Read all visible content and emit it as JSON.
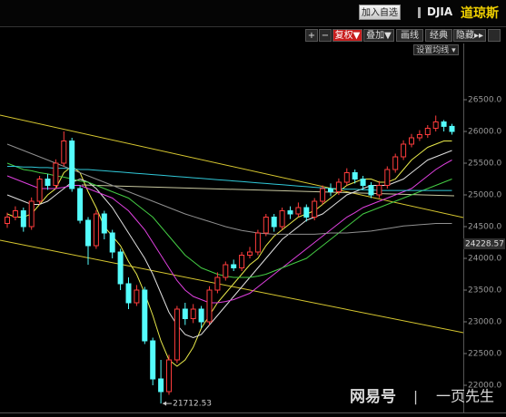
{
  "header": {
    "button": "加入自选",
    "symbol": "DJIA",
    "name": "道琼斯"
  },
  "toolbar": [
    "+",
    "−",
    "复权▼",
    "叠加▼",
    "画线",
    "经典",
    "隐藏▸▸"
  ],
  "ma_setting": "设置均线 ▾",
  "watermark": {
    "brand": "网易号",
    "author": "一页先生"
  },
  "chart_data": {
    "type": "candlestick",
    "up_color": "#ff3c3c",
    "down_color": "#54fcfc",
    "open": [
      24550,
      24650,
      24750,
      24500,
      24900,
      25250,
      25150,
      25500,
      25850,
      25100,
      24600,
      24200,
      24700,
      24400,
      24100,
      23600,
      23300,
      23500,
      22700,
      22100,
      21900,
      22400,
      23200,
      23050,
      23200,
      23000,
      23500,
      23700,
      23900,
      23850,
      24050,
      24100,
      24400,
      24650,
      24500,
      24750,
      24700,
      24800,
      24650,
      24900,
      25100,
      25050,
      25200,
      25350,
      25250,
      25150,
      25000,
      25150,
      25400,
      25600,
      25800,
      25900,
      25950,
      26050,
      26150,
      26080
    ],
    "close": [
      24650,
      24750,
      24500,
      24900,
      25250,
      25150,
      25500,
      25850,
      25100,
      24600,
      24200,
      24700,
      24400,
      24100,
      23600,
      23300,
      23500,
      22700,
      22100,
      21900,
      22400,
      23200,
      23050,
      23200,
      23000,
      23500,
      23700,
      23900,
      23850,
      24050,
      24100,
      24400,
      24650,
      24500,
      24750,
      24700,
      24800,
      24650,
      24900,
      25100,
      25050,
      25200,
      25350,
      25250,
      25150,
      25000,
      25150,
      25400,
      25600,
      25800,
      25900,
      25950,
      26050,
      26150,
      26080,
      26000
    ],
    "high": [
      24720,
      24820,
      24800,
      24960,
      25300,
      25330,
      25560,
      26000,
      25900,
      25150,
      24650,
      24760,
      24750,
      24450,
      24150,
      23700,
      23580,
      23550,
      22750,
      22400,
      22480,
      23250,
      23300,
      23280,
      23250,
      23560,
      23780,
      23950,
      23980,
      24100,
      24180,
      24450,
      24700,
      24700,
      24800,
      24820,
      24880,
      24850,
      24950,
      25150,
      25180,
      25260,
      25420,
      25400,
      25300,
      25200,
      25220,
      25450,
      25650,
      25860,
      25960,
      26020,
      26100,
      26250,
      26180,
      26120
    ],
    "low": [
      24480,
      24600,
      24420,
      24450,
      24850,
      25080,
      25100,
      25450,
      25050,
      24550,
      23900,
      24150,
      24300,
      24000,
      23500,
      23200,
      23250,
      22650,
      22000,
      21712.53,
      21850,
      22350,
      22950,
      22980,
      22900,
      22950,
      23450,
      23650,
      23800,
      23800,
      24000,
      24050,
      24350,
      24420,
      24450,
      24620,
      24650,
      24580,
      24600,
      24850,
      24980,
      25000,
      25150,
      25180,
      25080,
      24950,
      24950,
      25100,
      25350,
      25550,
      25750,
      25850,
      25900,
      26000,
      26000,
      25950
    ],
    "ma_lines": [
      {
        "color": "#e8e84a",
        "values": [
          24700,
          24650,
          24650,
          24700,
          24850,
          25000,
          25100,
          25350,
          25450,
          25350,
          25050,
          24800,
          24500,
          24350,
          24200,
          23950,
          23750,
          23450,
          23100,
          22700,
          22400,
          22300,
          22400,
          22600,
          22900,
          23100,
          23300,
          23450,
          23600,
          23750,
          23900,
          24000,
          24200,
          24350,
          24450,
          24550,
          24650,
          24700,
          24750,
          24850,
          24950,
          25050,
          25150,
          25200,
          25250,
          25250,
          25200,
          25200,
          25250,
          25400,
          25550,
          25650,
          25750,
          25800,
          25850,
          25850
        ]
      },
      {
        "color": "#e0e0e0",
        "values": [
          25000,
          24950,
          24900,
          24850,
          24850,
          24900,
          25000,
          25100,
          25200,
          25250,
          25200,
          25100,
          24950,
          24800,
          24600,
          24400,
          24200,
          24000,
          23750,
          23450,
          23150,
          22950,
          22800,
          22750,
          22800,
          22950,
          23100,
          23250,
          23400,
          23550,
          23700,
          23850,
          24000,
          24150,
          24300,
          24400,
          24500,
          24600,
          24650,
          24700,
          24800,
          24900,
          25000,
          25050,
          25100,
          25150,
          25150,
          25150,
          25200,
          25250,
          25350,
          25450,
          25550,
          25600,
          25650,
          25700
        ]
      },
      {
        "color": "#e040e0",
        "values": [
          25300,
          25250,
          25200,
          25150,
          25100,
          25100,
          25100,
          25120,
          25150,
          25150,
          25100,
          25050,
          25000,
          24950,
          24850,
          24750,
          24600,
          24450,
          24250,
          24050,
          23850,
          23650,
          23500,
          23400,
          23350,
          23300,
          23300,
          23320,
          23350,
          23400,
          23450,
          23550,
          23650,
          23750,
          23850,
          23950,
          24050,
          24150,
          24250,
          24350,
          24450,
          24550,
          24650,
          24720,
          24800,
          24850,
          24900,
          24950,
          25000,
          25050,
          25100,
          25200,
          25300,
          25400,
          25480,
          25550
        ]
      },
      {
        "color": "#44cc44",
        "values": [
          25500,
          25450,
          25400,
          25380,
          25350,
          25330,
          25300,
          25280,
          25250,
          25220,
          25200,
          25150,
          25100,
          25050,
          25000,
          24950,
          24850,
          24750,
          24650,
          24500,
          24350,
          24200,
          24050,
          23950,
          23850,
          23800,
          23750,
          23720,
          23700,
          23700,
          23700,
          23720,
          23750,
          23800,
          23850,
          23900,
          23950,
          24000,
          24100,
          24200,
          24300,
          24400,
          24500,
          24600,
          24700,
          24750,
          24800,
          24850,
          24900,
          24950,
          25000,
          25050,
          25100,
          25150,
          25200,
          25250
        ]
      },
      {
        "color": "#30c8d8",
        "values": [
          25450,
          25450,
          25440,
          25440,
          25430,
          25430,
          25420,
          25420,
          25410,
          25400,
          25400,
          25390,
          25380,
          25370,
          25360,
          25350,
          25340,
          25330,
          25320,
          25310,
          25300,
          25290,
          25280,
          25270,
          25260,
          25250,
          25240,
          25230,
          25220,
          25210,
          25200,
          25190,
          25180,
          25170,
          25160,
          25150,
          25140,
          25130,
          25120,
          25110,
          25100,
          25100,
          25090,
          25090,
          25080,
          25080,
          25070,
          25070,
          25070,
          25070,
          25070,
          25070,
          25070,
          25070,
          25070,
          25070
        ]
      },
      {
        "color": "#909090",
        "values": [
          25800,
          25750,
          25700,
          25650,
          25600,
          25550,
          25500,
          25450,
          25400,
          25350,
          25300,
          25250,
          25200,
          25150,
          25100,
          25050,
          25000,
          24950,
          24900,
          24850,
          24800,
          24750,
          24700,
          24660,
          24620,
          24580,
          24540,
          24500,
          24470,
          24440,
          24420,
          24400,
          24390,
          24380,
          24380,
          24380,
          24380,
          24380,
          24380,
          24390,
          24400,
          24400,
          24400,
          24410,
          24420,
          24430,
          24450,
          24470,
          24490,
          24510,
          24520,
          24530,
          24540,
          24550,
          24550,
          24550
        ]
      }
    ],
    "current_price": 24228.57,
    "ylim": [
      21550,
      27350
    ],
    "yticks": [
      {
        "value": 22000,
        "label": "22000.0"
      },
      {
        "value": 22500,
        "label": "22500.0"
      },
      {
        "value": 23000,
        "label": "23000.0"
      },
      {
        "value": 23500,
        "label": "23500.0"
      },
      {
        "value": 24000,
        "label": "24000.0"
      },
      {
        "value": 24500,
        "label": "24500.0"
      },
      {
        "value": 25000,
        "label": "25000.0"
      },
      {
        "value": 25500,
        "label": "25500.0"
      },
      {
        "value": 26000,
        "label": "26000.0"
      },
      {
        "value": 26500,
        "label": "26500.0"
      }
    ]
  }
}
